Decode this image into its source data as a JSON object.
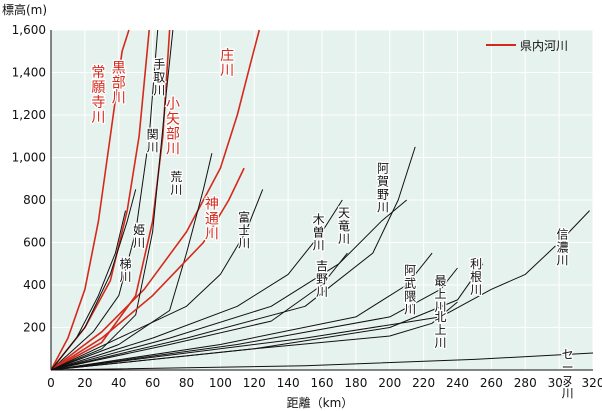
{
  "chart_data": {
    "type": "line",
    "title": "",
    "ylabel": "標高(m)",
    "xlabel": "距離（km）",
    "xlim": [
      0,
      320
    ],
    "ylim": [
      0,
      1600
    ],
    "x_ticks": [
      0,
      20,
      40,
      60,
      80,
      100,
      120,
      140,
      160,
      180,
      200,
      220,
      240,
      260,
      280,
      300,
      320
    ],
    "y_ticks": [
      200,
      400,
      600,
      800,
      1000,
      1200,
      1400,
      1600
    ],
    "y_tick_labels": [
      "200",
      "400",
      "600",
      "800",
      "1,000",
      "1,200",
      "1,400",
      "1,600"
    ],
    "legend": {
      "position": "top-right",
      "label": "県内河川",
      "color": "#d42a1e"
    },
    "colors": {
      "red": "#d42a1e",
      "black": "#111111",
      "background": "#e6f2ed",
      "grid": "#ffffff"
    },
    "series": [
      {
        "name": "常願寺川",
        "color": "red",
        "label_pos": [
          28,
          1380
        ],
        "points": [
          [
            0,
            0
          ],
          [
            10,
            150
          ],
          [
            20,
            380
          ],
          [
            28,
            700
          ],
          [
            35,
            1100
          ],
          [
            42,
            1500
          ],
          [
            46,
            1600
          ]
        ]
      },
      {
        "name": "黒部川",
        "color": "red",
        "label_pos": [
          40,
          1400
        ],
        "points": [
          [
            0,
            0
          ],
          [
            20,
            200
          ],
          [
            35,
            420
          ],
          [
            45,
            750
          ],
          [
            52,
            1100
          ],
          [
            58,
            1600
          ]
        ]
      },
      {
        "name": "手取川",
        "color": "black",
        "label_pos": [
          64,
          1420
        ],
        "points": [
          [
            0,
            0
          ],
          [
            25,
            180
          ],
          [
            40,
            350
          ],
          [
            50,
            650
          ],
          [
            58,
            1100
          ],
          [
            63,
            1600
          ]
        ]
      },
      {
        "name": "庄川",
        "color": "red",
        "label_pos": [
          104,
          1460
        ],
        "points": [
          [
            0,
            0
          ],
          [
            30,
            180
          ],
          [
            55,
            380
          ],
          [
            80,
            650
          ],
          [
            100,
            950
          ],
          [
            110,
            1200
          ],
          [
            118,
            1450
          ],
          [
            123,
            1600
          ]
        ]
      },
      {
        "name": "小矢部川",
        "color": "red",
        "label_pos": [
          72,
          1230
        ],
        "points": [
          [
            0,
            0
          ],
          [
            30,
            130
          ],
          [
            50,
            350
          ],
          [
            60,
            700
          ],
          [
            66,
            1100
          ],
          [
            70,
            1600
          ]
        ]
      },
      {
        "name": "関川",
        "color": "black",
        "label_pos": [
          60,
          1090
        ],
        "points": [
          [
            0,
            0
          ],
          [
            30,
            100
          ],
          [
            50,
            260
          ],
          [
            60,
            650
          ],
          [
            68,
            1300
          ],
          [
            72,
            1600
          ]
        ]
      },
      {
        "name": "荒川",
        "color": "black",
        "label_pos": [
          74,
          890
        ],
        "points": [
          [
            0,
            0
          ],
          [
            40,
            120
          ],
          [
            70,
            280
          ],
          [
            80,
            550
          ],
          [
            90,
            850
          ],
          [
            95,
            1020
          ]
        ]
      },
      {
        "name": "神通川",
        "color": "red",
        "label_pos": [
          95,
          760
        ],
        "points": [
          [
            0,
            0
          ],
          [
            30,
            150
          ],
          [
            60,
            350
          ],
          [
            90,
            600
          ],
          [
            105,
            800
          ],
          [
            114,
            950
          ]
        ]
      },
      {
        "name": "姫川",
        "color": "black",
        "label_pos": [
          52,
          640
        ],
        "points": [
          [
            0,
            0
          ],
          [
            20,
            200
          ],
          [
            35,
            450
          ],
          [
            45,
            700
          ],
          [
            50,
            850
          ]
        ]
      },
      {
        "name": "梯川",
        "color": "black",
        "label_pos": [
          44,
          480
        ],
        "points": [
          [
            0,
            0
          ],
          [
            15,
            150
          ],
          [
            28,
            350
          ],
          [
            38,
            550
          ],
          [
            44,
            750
          ]
        ]
      },
      {
        "name": "富士川",
        "color": "black",
        "label_pos": [
          114,
          700
        ],
        "points": [
          [
            0,
            0
          ],
          [
            40,
            150
          ],
          [
            80,
            300
          ],
          [
            100,
            450
          ],
          [
            115,
            650
          ],
          [
            125,
            850
          ]
        ]
      },
      {
        "name": "木曽川",
        "color": "black",
        "label_pos": [
          158,
          690
        ],
        "points": [
          [
            0,
            0
          ],
          [
            60,
            150
          ],
          [
            110,
            300
          ],
          [
            140,
            450
          ],
          [
            160,
            650
          ],
          [
            172,
            800
          ]
        ]
      },
      {
        "name": "天竜川",
        "color": "black",
        "label_pos": [
          173,
          720
        ],
        "points": [
          [
            0,
            0
          ],
          [
            70,
            150
          ],
          [
            130,
            300
          ],
          [
            170,
            500
          ],
          [
            195,
            700
          ],
          [
            210,
            800
          ]
        ]
      },
      {
        "name": "阿賀野川",
        "color": "black",
        "label_pos": [
          196,
          930
        ],
        "points": [
          [
            0,
            0
          ],
          [
            80,
            150
          ],
          [
            150,
            300
          ],
          [
            190,
            550
          ],
          [
            205,
            800
          ],
          [
            215,
            1050
          ]
        ]
      },
      {
        "name": "吉野川",
        "color": "black",
        "label_pos": [
          160,
          470
        ],
        "points": [
          [
            0,
            0
          ],
          [
            70,
            120
          ],
          [
            130,
            230
          ],
          [
            160,
            400
          ],
          [
            175,
            550
          ]
        ]
      },
      {
        "name": "阿武隈川",
        "color": "black",
        "label_pos": [
          212,
          450
        ],
        "points": [
          [
            0,
            0
          ],
          [
            100,
            120
          ],
          [
            180,
            250
          ],
          [
            210,
            400
          ],
          [
            225,
            550
          ]
        ]
      },
      {
        "name": "最上川",
        "color": "black",
        "label_pos": [
          230,
          400
        ],
        "points": [
          [
            0,
            0
          ],
          [
            110,
            120
          ],
          [
            200,
            250
          ],
          [
            230,
            380
          ],
          [
            240,
            480
          ]
        ]
      },
      {
        "name": "利根川",
        "color": "black",
        "label_pos": [
          251,
          480
        ],
        "points": [
          [
            0,
            0
          ],
          [
            120,
            100
          ],
          [
            200,
            200
          ],
          [
            240,
            330
          ],
          [
            255,
            500
          ]
        ]
      },
      {
        "name": "信濃川",
        "color": "black",
        "label_pos": [
          302,
          620
        ],
        "points": [
          [
            0,
            0
          ],
          [
            150,
            150
          ],
          [
            230,
            250
          ],
          [
            260,
            380
          ],
          [
            280,
            450
          ],
          [
            300,
            600
          ],
          [
            318,
            750
          ]
        ]
      },
      {
        "name": "北上川",
        "color": "black",
        "label_pos": [
          230,
          230
        ],
        "points": [
          [
            0,
            0
          ],
          [
            120,
            100
          ],
          [
            200,
            160
          ],
          [
            225,
            220
          ],
          [
            240,
            320
          ]
        ]
      },
      {
        "name": "セーヌ川",
        "color": "black",
        "label_pos": [
          305,
          55
        ],
        "points": [
          [
            0,
            0
          ],
          [
            150,
            20
          ],
          [
            250,
            50
          ],
          [
            320,
            80
          ]
        ]
      }
    ]
  }
}
